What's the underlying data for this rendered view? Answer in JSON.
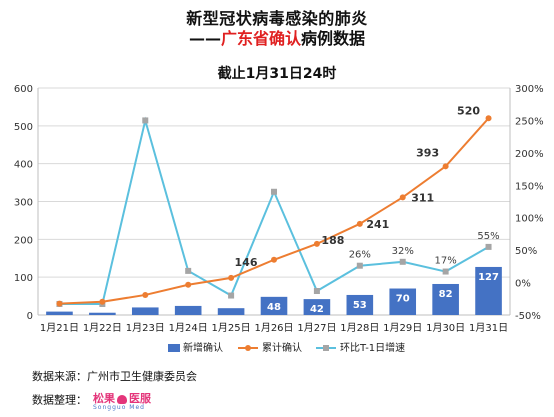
{
  "title_line1": "新型冠状病毒感染的肺炎",
  "title_line2_prefix": "——",
  "title_line2_red": "广东省确认",
  "title_line2_suffix": "病例数据",
  "subtitle": "截止1月31日24时",
  "footer": {
    "source_label": "数据来源：",
    "source_value": "广州市卫生健康委员会",
    "compiler_label": "数据整理：",
    "logo_text_left": "松果",
    "logo_text_right": "医服",
    "logo_sub": "Songguo Med"
  },
  "colors": {
    "bar": "#4472c4",
    "cumulative": "#ed7d31",
    "growth": "#5bc0de",
    "title_red": "#e02020"
  },
  "chart_data": {
    "type": "bar",
    "categories": [
      "1月21日",
      "1月22日",
      "1月23日",
      "1月24日",
      "1月25日",
      "1月26日",
      "1月27日",
      "1月28日",
      "1月29日",
      "1月30日",
      "1月31日"
    ],
    "y_left": {
      "min": 0,
      "max": 600,
      "ticks": [
        0,
        100,
        200,
        300,
        400,
        500,
        600
      ]
    },
    "y_right": {
      "min": -50,
      "max": 300,
      "ticks": [
        "-50%",
        "0%",
        "50%",
        "100%",
        "150%",
        "200%",
        "250%",
        "300%"
      ],
      "tick_values": [
        -50,
        0,
        50,
        100,
        150,
        200,
        250,
        300
      ]
    },
    "grid": true,
    "legend_position": "bottom",
    "series": [
      {
        "name": "新增确认",
        "type": "bar",
        "axis": "left",
        "values": [
          9,
          6,
          20,
          24,
          18,
          48,
          42,
          53,
          70,
          82,
          127
        ],
        "labels": [
          "",
          "",
          "",
          "",
          "",
          "48",
          "42",
          "53",
          "70",
          "82",
          "127"
        ]
      },
      {
        "name": "累计确认",
        "type": "line",
        "axis": "left",
        "values": [
          30,
          35,
          53,
          80,
          98,
          146,
          188,
          241,
          311,
          393,
          520
        ],
        "labels": [
          "",
          "",
          "",
          "",
          "",
          "146",
          "188",
          "241",
          "311",
          "393",
          "520"
        ]
      },
      {
        "name": "环比T-1日增速",
        "type": "line",
        "axis": "right",
        "values": [
          -33,
          -33,
          250,
          18,
          -20,
          140,
          -13,
          26,
          32,
          17,
          55
        ],
        "labels": [
          "",
          "",
          "",
          "",
          "",
          "",
          "",
          "26%",
          "32%",
          "17%",
          "55%"
        ]
      }
    ]
  }
}
